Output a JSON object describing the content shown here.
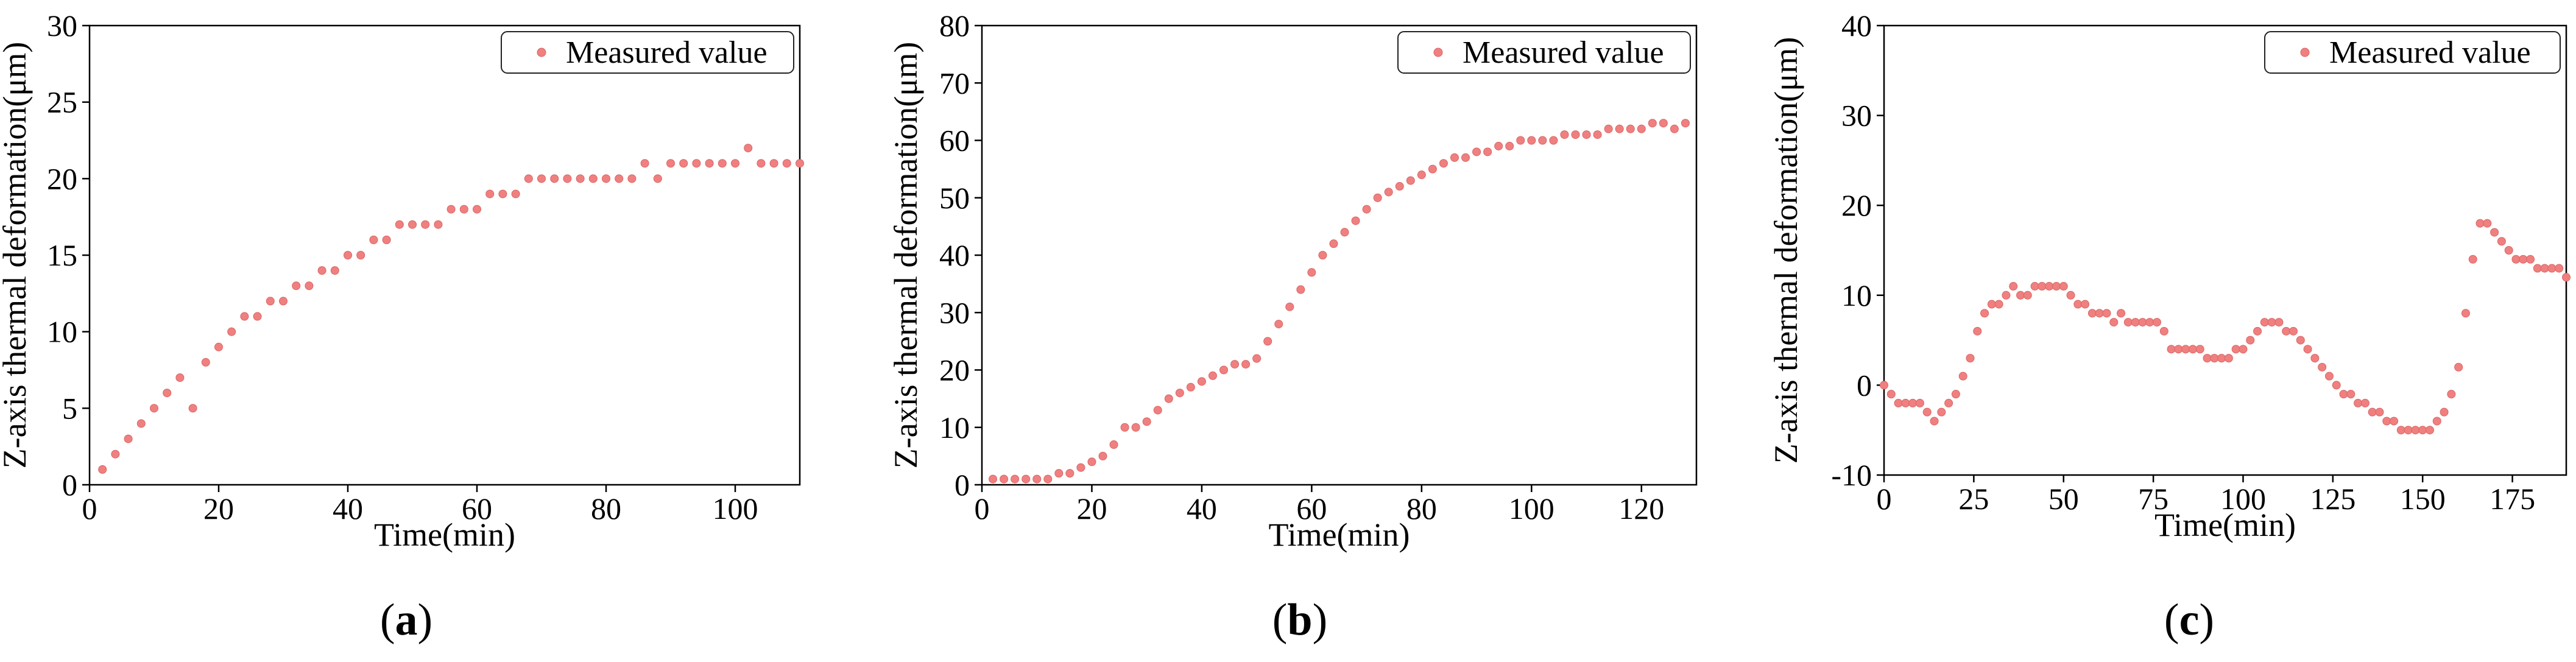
{
  "figure_type": "scatter-panels",
  "colors": {
    "marker": "#f08080",
    "marker_edge": "#d96565",
    "axis": "#000000",
    "background": "#ffffff"
  },
  "chart_data": [
    {
      "type": "scatter",
      "panel_letter": "a",
      "xlabel": "Time(min)",
      "ylabel": "Z-axis thermal deformation(μm)",
      "legend": "Measured value",
      "legend_position": "top-right",
      "xlim": [
        0,
        110
      ],
      "ylim": [
        0,
        30
      ],
      "xticks": [
        0,
        20,
        40,
        60,
        80,
        100
      ],
      "yticks": [
        0,
        5,
        10,
        15,
        20,
        25,
        30
      ],
      "x": [
        2,
        4,
        6,
        8,
        10,
        12,
        14,
        16,
        18,
        20,
        22,
        24,
        26,
        28,
        30,
        32,
        34,
        36,
        38,
        40,
        42,
        44,
        46,
        48,
        50,
        52,
        54,
        56,
        58,
        60,
        62,
        64,
        66,
        68,
        70,
        72,
        74,
        76,
        78,
        80,
        82,
        84,
        86,
        88,
        90,
        92,
        94,
        96,
        98,
        100,
        102,
        104,
        106,
        108,
        110
      ],
      "y": [
        1,
        2,
        3,
        4,
        5,
        6,
        7,
        5,
        8,
        9,
        10,
        11,
        11,
        12,
        12,
        13,
        13,
        14,
        14,
        15,
        15,
        16,
        16,
        17,
        17,
        17,
        17,
        18,
        18,
        18,
        19,
        19,
        19,
        20,
        20,
        20,
        20,
        20,
        20,
        20,
        20,
        20,
        21,
        20,
        21,
        21,
        21,
        21,
        21,
        21,
        22,
        21,
        21,
        21,
        21
      ]
    },
    {
      "type": "scatter",
      "panel_letter": "b",
      "xlabel": "Time(min)",
      "ylabel": "Z-axis thermal deformation(μm)",
      "legend": "Measured value",
      "legend_position": "top-right",
      "xlim": [
        0,
        130
      ],
      "ylim": [
        0,
        80
      ],
      "xticks": [
        0,
        20,
        40,
        60,
        80,
        100,
        120
      ],
      "yticks": [
        0,
        10,
        20,
        30,
        40,
        50,
        60,
        70,
        80
      ],
      "x": [
        2,
        4,
        6,
        8,
        10,
        12,
        14,
        16,
        18,
        20,
        22,
        24,
        26,
        28,
        30,
        32,
        34,
        36,
        38,
        40,
        42,
        44,
        46,
        48,
        50,
        52,
        54,
        56,
        58,
        60,
        62,
        64,
        66,
        68,
        70,
        72,
        74,
        76,
        78,
        80,
        82,
        84,
        86,
        88,
        90,
        92,
        94,
        96,
        98,
        100,
        102,
        104,
        106,
        108,
        110,
        112,
        114,
        116,
        118,
        120,
        122,
        124,
        126,
        128
      ],
      "y": [
        1,
        1,
        1,
        1,
        1,
        1,
        2,
        2,
        3,
        4,
        5,
        7,
        10,
        10,
        11,
        13,
        15,
        16,
        17,
        18,
        19,
        20,
        21,
        21,
        22,
        25,
        28,
        31,
        34,
        37,
        40,
        42,
        44,
        46,
        48,
        50,
        51,
        52,
        53,
        54,
        55,
        56,
        57,
        57,
        58,
        58,
        59,
        59,
        60,
        60,
        60,
        60,
        61,
        61,
        61,
        61,
        62,
        62,
        62,
        62,
        63,
        63,
        62,
        63
      ]
    },
    {
      "type": "scatter",
      "panel_letter": "c",
      "xlabel": "Time(min)",
      "ylabel": "Z-axis thermal deformation(μm)",
      "legend": "Measured value",
      "legend_position": "top-right",
      "xlim": [
        0,
        190
      ],
      "ylim": [
        -10,
        40
      ],
      "xticks": [
        0,
        25,
        50,
        75,
        100,
        125,
        150,
        175
      ],
      "yticks": [
        -10,
        0,
        10,
        20,
        30,
        40
      ],
      "x": [
        0,
        2,
        4,
        6,
        8,
        10,
        12,
        14,
        16,
        18,
        20,
        22,
        24,
        26,
        28,
        30,
        32,
        34,
        36,
        38,
        40,
        42,
        44,
        46,
        48,
        50,
        52,
        54,
        56,
        58,
        60,
        62,
        64,
        66,
        68,
        70,
        72,
        74,
        76,
        78,
        80,
        82,
        84,
        86,
        88,
        90,
        92,
        94,
        96,
        98,
        100,
        102,
        104,
        106,
        108,
        110,
        112,
        114,
        116,
        118,
        120,
        122,
        124,
        126,
        128,
        130,
        132,
        134,
        136,
        138,
        140,
        142,
        144,
        146,
        148,
        150,
        152,
        154,
        156,
        158,
        160,
        162,
        164,
        166,
        168,
        170,
        172,
        174,
        176,
        178,
        180,
        182,
        184,
        186,
        188,
        190
      ],
      "y": [
        0,
        -1,
        -2,
        -2,
        -2,
        -2,
        -3,
        -4,
        -3,
        -2,
        -1,
        1,
        3,
        6,
        8,
        9,
        9,
        10,
        11,
        10,
        10,
        11,
        11,
        11,
        11,
        11,
        10,
        9,
        9,
        8,
        8,
        8,
        7,
        8,
        7,
        7,
        7,
        7,
        7,
        6,
        4,
        4,
        4,
        4,
        4,
        3,
        3,
        3,
        3,
        4,
        4,
        5,
        6,
        7,
        7,
        7,
        6,
        6,
        5,
        4,
        3,
        2,
        1,
        0,
        -1,
        -1,
        -2,
        -2,
        -3,
        -3,
        -4,
        -4,
        -5,
        -5,
        -5,
        -5,
        -5,
        -4,
        -3,
        -1,
        2,
        8,
        14,
        18,
        18,
        17,
        16,
        15,
        14,
        14,
        14,
        13,
        13,
        13,
        13,
        12
      ]
    }
  ]
}
